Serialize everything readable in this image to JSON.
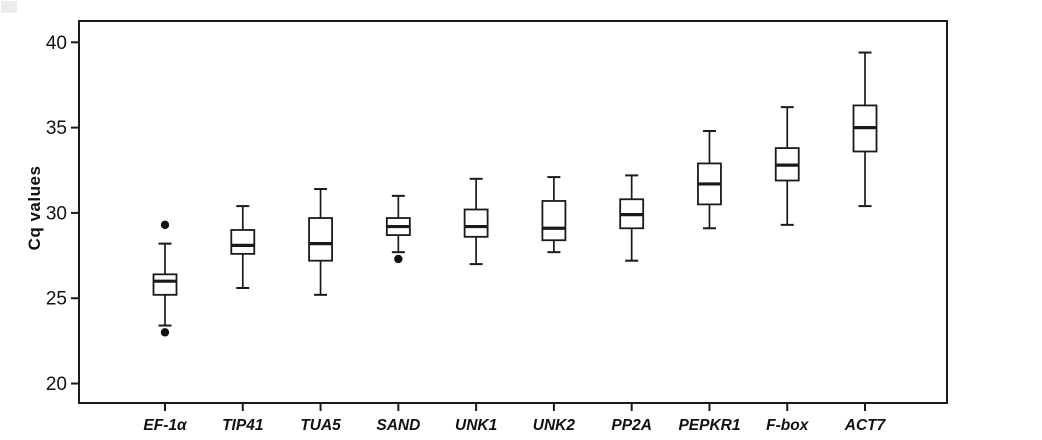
{
  "figure": {
    "background": "#ffffff",
    "ink_color": "#1a1a1a"
  },
  "chart_data": {
    "type": "boxplot",
    "title": "",
    "xlabel": "",
    "ylabel": "Cq values",
    "ylim": [
      18.8,
      41.3
    ],
    "yticks": [
      20,
      25,
      30,
      35,
      40
    ],
    "grid": false,
    "legend": "none",
    "categories": [
      "EF-1α",
      "TIP41",
      "TUA5",
      "SAND",
      "UNK1",
      "UNK2",
      "PP2A",
      "PEPKR1",
      "F-box",
      "ACT7"
    ],
    "series": [
      {
        "name": "EF-1α",
        "whisker_low": 23.4,
        "q1": 25.2,
        "median": 26.0,
        "q3": 26.4,
        "whisker_high": 28.2,
        "outliers": [
          29.3,
          23.0
        ]
      },
      {
        "name": "TIP41",
        "whisker_low": 25.6,
        "q1": 27.6,
        "median": 28.1,
        "q3": 29.0,
        "whisker_high": 30.4,
        "outliers": []
      },
      {
        "name": "TUA5",
        "whisker_low": 25.2,
        "q1": 27.2,
        "median": 28.2,
        "q3": 29.7,
        "whisker_high": 31.4,
        "outliers": []
      },
      {
        "name": "SAND",
        "whisker_low": 27.7,
        "q1": 28.7,
        "median": 29.2,
        "q3": 29.7,
        "whisker_high": 31.0,
        "outliers": [
          27.3
        ]
      },
      {
        "name": "UNK1",
        "whisker_low": 27.0,
        "q1": 28.6,
        "median": 29.2,
        "q3": 30.2,
        "whisker_high": 32.0,
        "outliers": []
      },
      {
        "name": "UNK2",
        "whisker_low": 27.7,
        "q1": 28.4,
        "median": 29.1,
        "q3": 30.7,
        "whisker_high": 32.1,
        "outliers": []
      },
      {
        "name": "PP2A",
        "whisker_low": 27.2,
        "q1": 29.1,
        "median": 29.9,
        "q3": 30.8,
        "whisker_high": 32.2,
        "outliers": []
      },
      {
        "name": "PEPKR1",
        "whisker_low": 29.1,
        "q1": 30.5,
        "median": 31.7,
        "q3": 32.9,
        "whisker_high": 34.8,
        "outliers": []
      },
      {
        "name": "F-box",
        "whisker_low": 29.3,
        "q1": 31.9,
        "median": 32.8,
        "q3": 33.8,
        "whisker_high": 36.2,
        "outliers": []
      },
      {
        "name": "ACT7",
        "whisker_low": 30.4,
        "q1": 33.6,
        "median": 35.0,
        "q3": 36.3,
        "whisker_high": 39.4,
        "outliers": []
      }
    ],
    "style": {
      "box_fill": "#ffffff",
      "stroke": "#1a1a1a",
      "outlier_fill": "#111111"
    }
  }
}
